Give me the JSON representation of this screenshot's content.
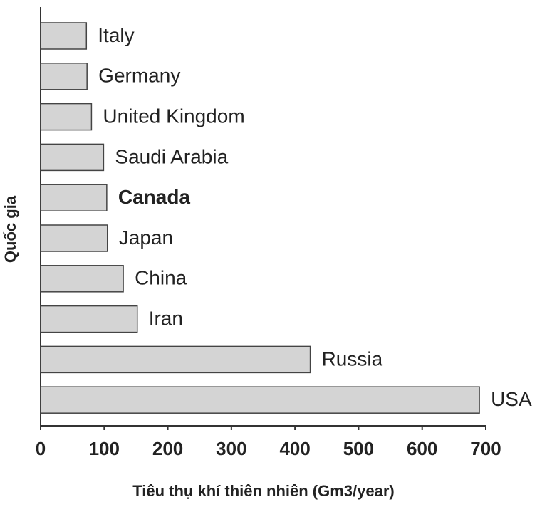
{
  "chart_data": {
    "type": "hbar",
    "xlabel": "Tiêu thụ khí thiên nhiên (Gm3/year)",
    "ylabel": "Quốc gia",
    "categories": [
      "Italy",
      "Germany",
      "United Kingdom",
      "Saudi Arabia",
      "Canada",
      "Japan",
      "China",
      "Iran",
      "Russia",
      "USA"
    ],
    "values": [
      72,
      73,
      80,
      99,
      104,
      105,
      130,
      152,
      424,
      690
    ],
    "bold": [
      false,
      false,
      false,
      false,
      true,
      false,
      false,
      false,
      false,
      false
    ],
    "color": "#d4d4d4",
    "xlim": [
      0,
      700
    ],
    "xticks": [
      0,
      100,
      200,
      300,
      400,
      500,
      600,
      700
    ],
    "grid": false
  }
}
